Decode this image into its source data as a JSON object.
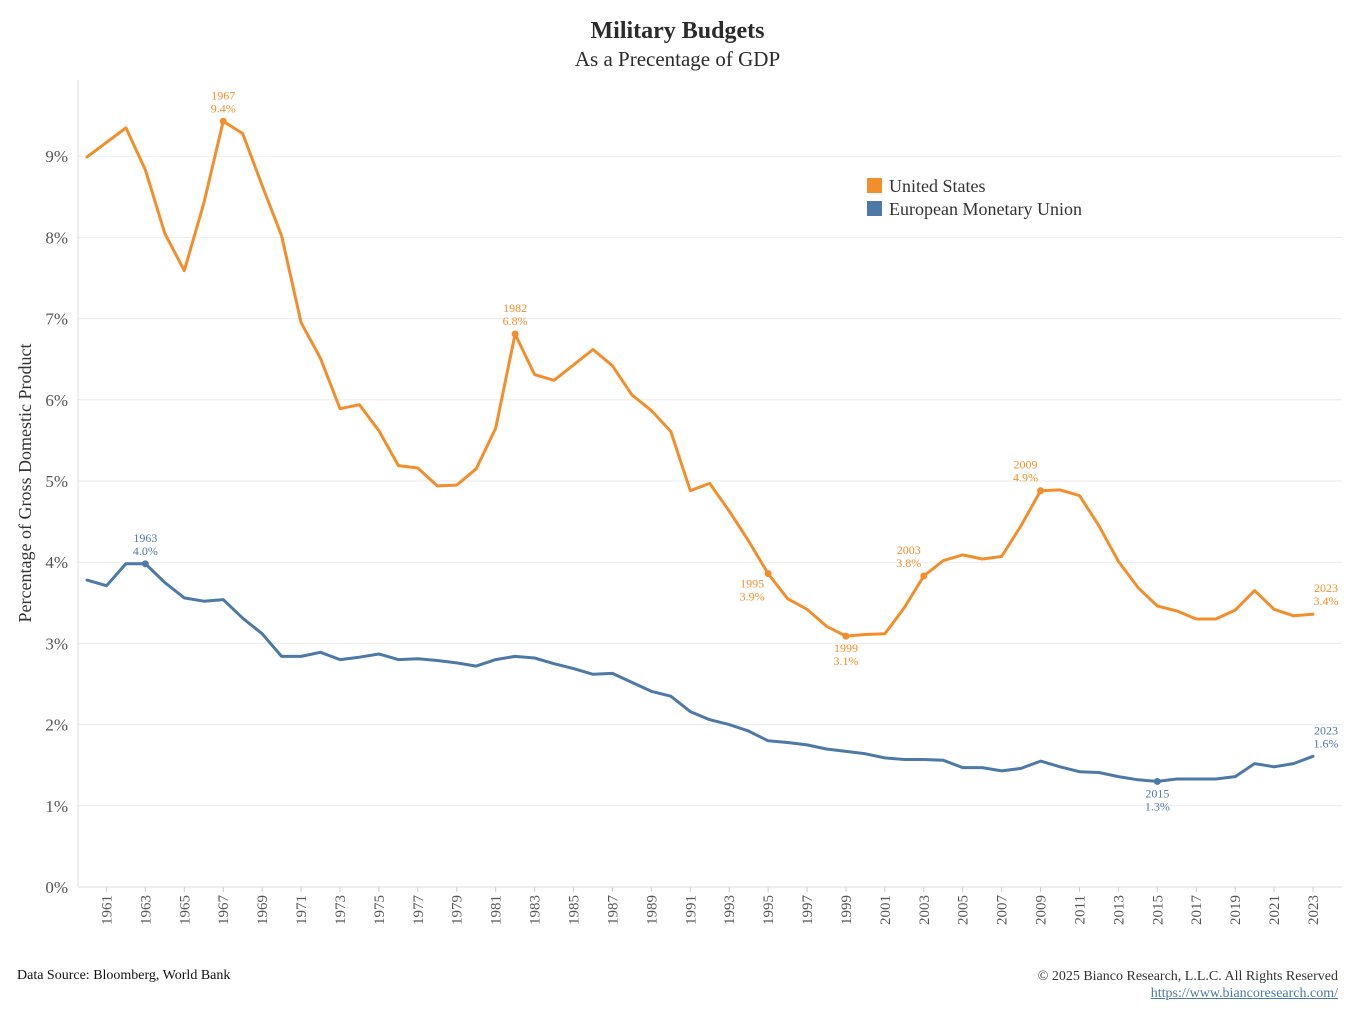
{
  "chart_data": {
    "type": "line",
    "title": "Military Budgets",
    "subtitle": "As a Precentage of GDP",
    "ylabel": "Percentage of Gross Domestic Product",
    "xlabel": "",
    "xlim": [
      1960,
      2023
    ],
    "ylim": [
      0,
      10
    ],
    "x_tick_labels": [
      "1961",
      "1963",
      "1965",
      "1967",
      "1969",
      "1971",
      "1973",
      "1975",
      "1977",
      "1979",
      "1981",
      "1983",
      "1985",
      "1987",
      "1989",
      "1991",
      "1993",
      "1995",
      "1997",
      "1999",
      "2001",
      "2003",
      "2005",
      "2007",
      "2009",
      "2011",
      "2013",
      "2015",
      "2017",
      "2019",
      "2021",
      "2023"
    ],
    "y_tick_labels": [
      "0%",
      "1%",
      "2%",
      "3%",
      "4%",
      "5%",
      "6%",
      "7%",
      "8%",
      "9%"
    ],
    "grid": "horizontal",
    "legend_position": "top-right",
    "x": [
      1960,
      1961,
      1962,
      1963,
      1964,
      1965,
      1966,
      1967,
      1968,
      1969,
      1970,
      1971,
      1972,
      1973,
      1974,
      1975,
      1976,
      1977,
      1978,
      1979,
      1980,
      1981,
      1982,
      1983,
      1984,
      1985,
      1986,
      1987,
      1988,
      1989,
      1990,
      1991,
      1992,
      1993,
      1994,
      1995,
      1996,
      1997,
      1998,
      1999,
      2000,
      2001,
      2002,
      2003,
      2004,
      2005,
      2006,
      2007,
      2008,
      2009,
      2010,
      2011,
      2012,
      2013,
      2014,
      2015,
      2016,
      2017,
      2018,
      2019,
      2020,
      2021,
      2022,
      2023
    ],
    "series": [
      {
        "name": "United States",
        "color": "#f28e2b",
        "values": [
          8.99,
          9.17,
          9.35,
          8.83,
          8.05,
          7.59,
          8.42,
          9.43,
          9.28,
          8.64,
          8.02,
          6.95,
          6.51,
          5.89,
          5.94,
          5.62,
          5.19,
          5.16,
          4.94,
          4.95,
          5.15,
          5.65,
          6.81,
          6.31,
          6.24,
          6.43,
          6.62,
          6.42,
          6.06,
          5.87,
          5.61,
          4.88,
          4.97,
          4.63,
          4.26,
          3.86,
          3.55,
          3.42,
          3.21,
          3.09,
          3.11,
          3.12,
          3.44,
          3.83,
          4.02,
          4.09,
          4.04,
          4.07,
          4.45,
          4.88,
          4.89,
          4.82,
          4.45,
          4.01,
          3.69,
          3.46,
          3.4,
          3.3,
          3.3,
          3.41,
          3.65,
          3.42,
          3.34,
          3.36
        ],
        "annotations": [
          {
            "year": "1967",
            "label": "9.4%"
          },
          {
            "year": "1982",
            "label": "6.8%"
          },
          {
            "year": "1995",
            "label": "3.9%"
          },
          {
            "year": "1999",
            "label": "3.1%"
          },
          {
            "year": "2003",
            "label": "3.8%"
          },
          {
            "year": "2009",
            "label": "4.9%"
          },
          {
            "year": "2023",
            "label": "3.4%"
          }
        ]
      },
      {
        "name": "European Monetary Union",
        "color": "#4e79a7",
        "values": [
          3.78,
          3.71,
          3.98,
          3.98,
          3.75,
          3.56,
          3.52,
          3.54,
          3.31,
          3.12,
          2.84,
          2.84,
          2.89,
          2.8,
          2.83,
          2.87,
          2.8,
          2.81,
          2.79,
          2.76,
          2.72,
          2.8,
          2.84,
          2.82,
          2.75,
          2.69,
          2.62,
          2.63,
          2.52,
          2.41,
          2.35,
          2.16,
          2.06,
          2.0,
          1.92,
          1.8,
          1.78,
          1.75,
          1.7,
          1.67,
          1.64,
          1.59,
          1.57,
          1.57,
          1.56,
          1.47,
          1.47,
          1.43,
          1.46,
          1.55,
          1.48,
          1.42,
          1.41,
          1.36,
          1.32,
          1.3,
          1.33,
          1.33,
          1.33,
          1.36,
          1.52,
          1.48,
          1.52,
          1.61
        ],
        "annotations": [
          {
            "year": "1963",
            "label": "4.0%"
          },
          {
            "year": "2015",
            "label": "1.3%"
          },
          {
            "year": "2023",
            "label": "1.6%"
          }
        ]
      }
    ]
  },
  "footer": {
    "source": "Data Source: Bloomberg, World Bank",
    "copyright": "© 2025 Bianco Research, L.L.C. All Rights Reserved",
    "url": "https://www.biancoresearch.com/"
  }
}
